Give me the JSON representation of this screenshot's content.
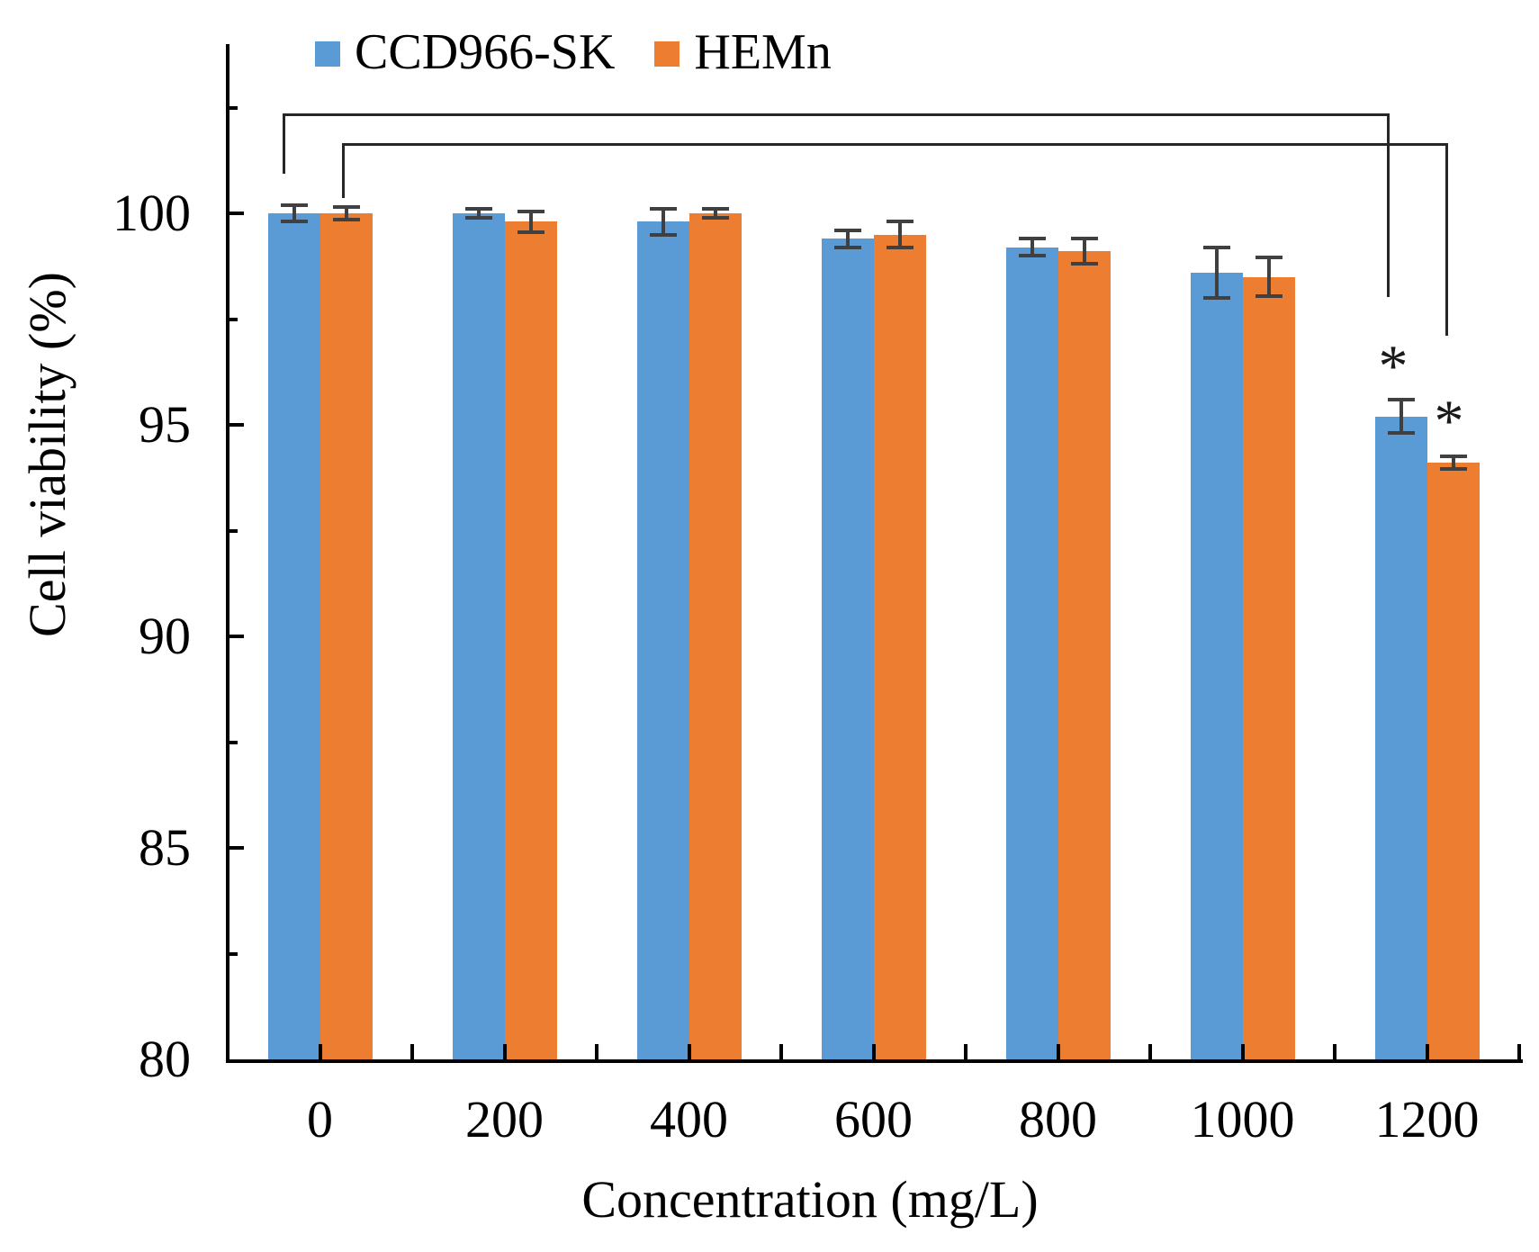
{
  "figure": {
    "background": "#ffffff",
    "axis_color": "#000000",
    "error_bar_color": "#404040",
    "bracket_color": "#262626"
  },
  "chart_data": {
    "type": "bar",
    "title": "",
    "xlabel": "Concentration (mg/L)",
    "ylabel": "Cell viability (%)",
    "categories": [
      "0",
      "200",
      "400",
      "600",
      "800",
      "1000",
      "1200"
    ],
    "series": [
      {
        "name": "CCD966-SK",
        "color": "#5B9BD5",
        "values": [
          100.0,
          100.0,
          99.8,
          99.4,
          99.2,
          98.6,
          95.2
        ],
        "errors": [
          0.2,
          0.1,
          0.3,
          0.2,
          0.2,
          0.6,
          0.4
        ]
      },
      {
        "name": "HEMn",
        "color": "#ED7D31",
        "values": [
          100.0,
          99.8,
          100.0,
          99.5,
          99.1,
          98.5,
          94.1
        ],
        "errors": [
          0.15,
          0.25,
          0.1,
          0.3,
          0.3,
          0.45,
          0.15
        ]
      }
    ],
    "ylim": [
      80,
      104
    ],
    "yticks": [
      80,
      85,
      90,
      95,
      100
    ],
    "yticks_minor": [
      82.5,
      87.5,
      92.5,
      97.5,
      102.5
    ],
    "grid": false,
    "legend_position": "top-left",
    "annotations": [
      {
        "type": "significance-bracket",
        "series": "CCD966-SK",
        "from": "0",
        "to": "1200",
        "label": "*"
      },
      {
        "type": "significance-bracket",
        "series": "HEMn",
        "from": "0",
        "to": "1200",
        "label": "*"
      }
    ]
  }
}
